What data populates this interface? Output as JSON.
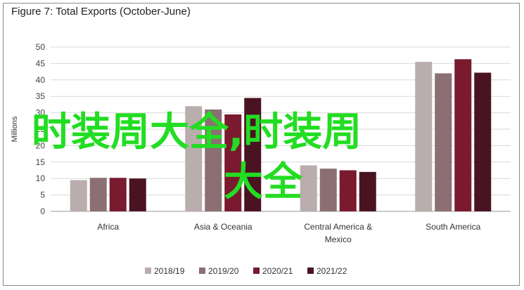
{
  "chart_data": {
    "type": "bar",
    "title": "Figure 7: Total Exports (October-June)",
    "ylabel": "Millions",
    "xlabel": "",
    "ylim": [
      0,
      50
    ],
    "yticks": [
      0,
      5,
      10,
      15,
      20,
      25,
      30,
      35,
      40,
      45,
      50
    ],
    "categories": [
      "Africa",
      "Asia & Oceania",
      "Central America &\nMexico",
      "South America"
    ],
    "series": [
      {
        "name": "2018/19",
        "color": "#b9adad",
        "values": [
          9.5,
          32,
          14,
          45.5
        ]
      },
      {
        "name": "2019/20",
        "color": "#8c6f72",
        "values": [
          10.2,
          31,
          13,
          42
        ]
      },
      {
        "name": "2020/21",
        "color": "#7a1a2e",
        "values": [
          10.2,
          29.5,
          12.5,
          46.3
        ]
      },
      {
        "name": "2021/22",
        "color": "#4a1322",
        "values": [
          10,
          34.5,
          12,
          42.2
        ]
      }
    ],
    "grid": true,
    "legend_position": "bottom"
  },
  "overlay": {
    "line1": "时装周大全,时装周",
    "line2": "大全",
    "color": "#22dd22"
  }
}
